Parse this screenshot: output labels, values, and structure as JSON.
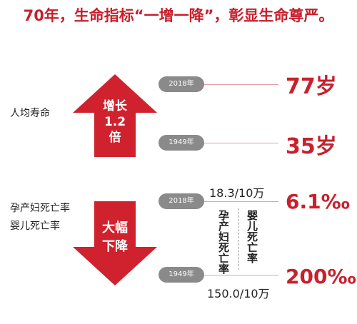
{
  "title": "70年，生命指标“一增一降”，彰显生命尊严。",
  "life": {
    "label": "人均寿命",
    "arrow_lines": [
      "增长",
      "1.2",
      "倍"
    ],
    "top_year": "2018年",
    "top_value": "77岁",
    "bottom_year": "1949年",
    "bottom_value": "35岁"
  },
  "mortality": {
    "labels": [
      "孕产妇死亡率",
      "婴儿死亡率"
    ],
    "arrow_lines": [
      "大幅",
      "下降"
    ],
    "top_year": "2018年",
    "top_maternal": "18.3/10万",
    "top_infant": "6.1‰",
    "bottom_year": "1949年",
    "bottom_maternal": "150.0/10万",
    "bottom_infant": "200‰",
    "col_maternal": "孕产妇死亡率",
    "col_infant": "婴儿死亡率"
  },
  "colors": {
    "accent": "#c8202c",
    "arrow": "#d0222e",
    "pill": "#8a8a8a",
    "line": "#e0a0a6"
  }
}
